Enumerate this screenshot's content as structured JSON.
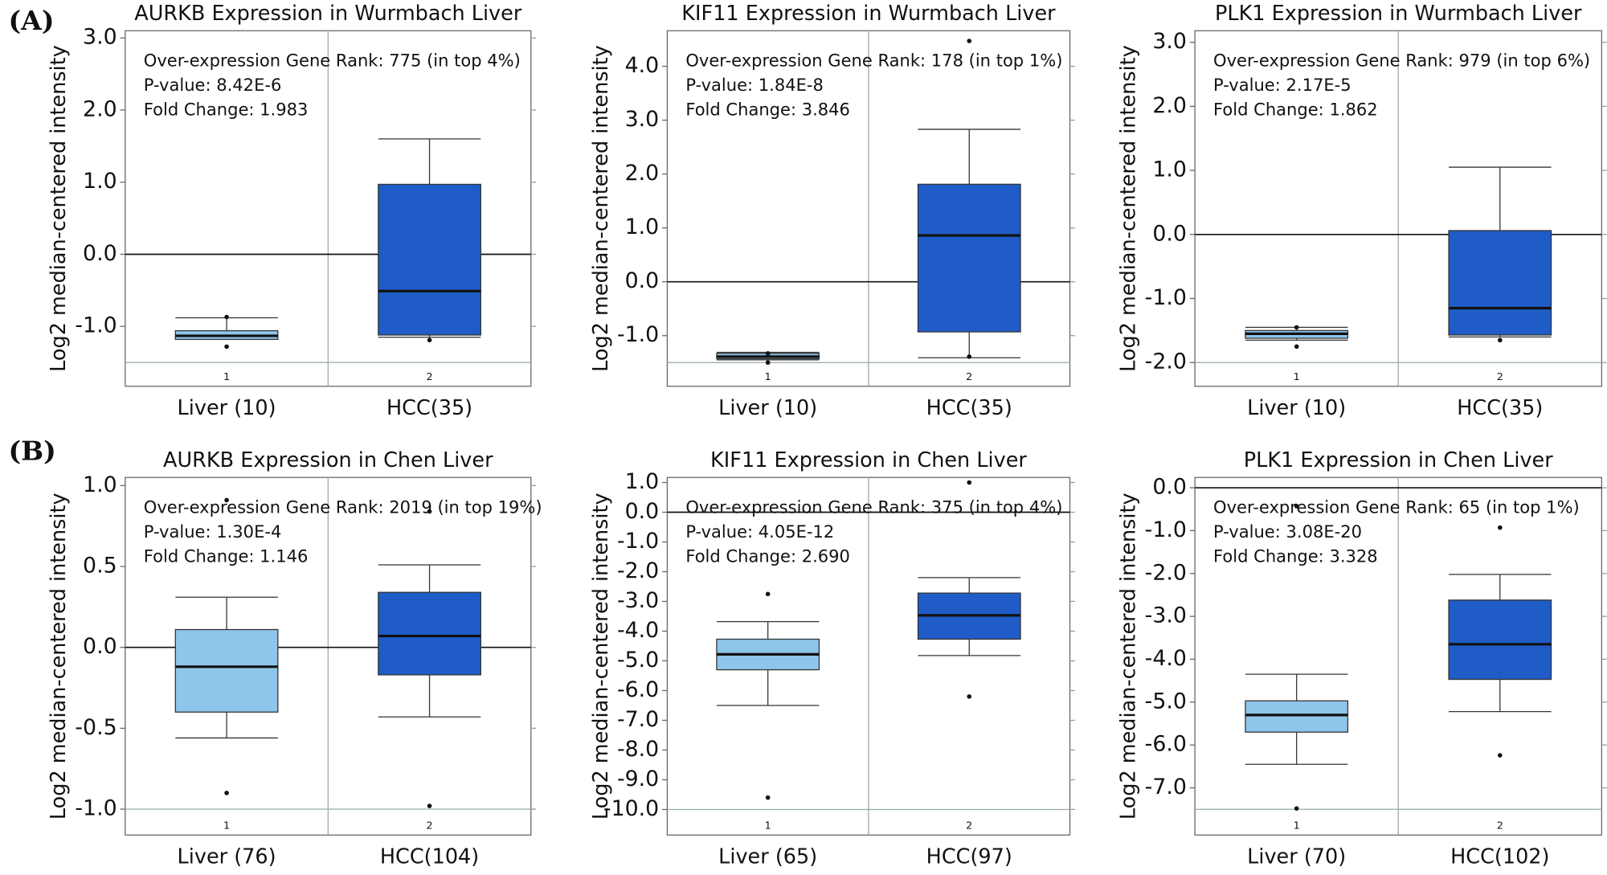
{
  "panel_labels": [
    "(A)",
    "(B)"
  ],
  "chart_data": [
    {
      "type": "box",
      "title": "AURKB Expression in Wurmbach Liver",
      "ylabel": "Log2 median-centered intensity",
      "annotations": [
        "Over-expression Gene Rank: 775 (in top 4%)",
        "P-value: 8.42E-6",
        "Fold Change: 1.983"
      ],
      "categories": [
        "Liver (10)",
        "HCC(35)"
      ],
      "index_labels": [
        "1",
        "2"
      ],
      "colors": [
        "#8ec5ea",
        "#1f5cc7"
      ],
      "boxes": [
        {
          "whislo": -1.18,
          "q1": -1.18,
          "med": -1.13,
          "q3": -1.06,
          "whishi": -0.88,
          "fliers": [
            -0.87,
            -1.28
          ]
        },
        {
          "whislo": -1.15,
          "q1": -1.12,
          "med": -0.51,
          "q3": 0.97,
          "whishi": 1.6,
          "fliers": [
            -1.19
          ]
        }
      ],
      "reference_lines": [
        0,
        -1.5
      ],
      "ylim": [
        -1.83,
        3.1
      ],
      "yticks": [
        {
          "value": -1,
          "label": "-1.0"
        },
        {
          "value": 0,
          "label": "0.0"
        },
        {
          "value": 1,
          "label": "1.0"
        },
        {
          "value": 2,
          "label": "2.0"
        },
        {
          "value": 3,
          "label": "3.0"
        }
      ]
    },
    {
      "type": "box",
      "title": "KIF11 Expression in Wurmbach Liver",
      "ylabel": "Log2 median-centered intensity",
      "annotations": [
        "Over-expression Gene Rank: 178 (in top 1%)",
        "P-value: 1.84E-8",
        "Fold Change: 3.846"
      ],
      "categories": [
        "Liver (10)",
        "HCC(35)"
      ],
      "index_labels": [
        "1",
        "2"
      ],
      "colors": [
        "#8ec5ea",
        "#1f5cc7"
      ],
      "boxes": [
        {
          "whislo": -1.45,
          "q1": -1.43,
          "med": -1.39,
          "q3": -1.33,
          "whishi": -1.31,
          "fliers": [
            -1.33,
            -1.5
          ]
        },
        {
          "whislo": -1.41,
          "q1": -0.93,
          "med": 0.86,
          "q3": 1.81,
          "whishi": 2.83,
          "fliers": [
            -1.39,
            4.47
          ]
        }
      ],
      "reference_lines": [
        0,
        -1.5
      ],
      "ylim": [
        -1.94,
        4.66
      ],
      "yticks": [
        {
          "value": -1,
          "label": "-1.0"
        },
        {
          "value": 0,
          "label": "0.0"
        },
        {
          "value": 1,
          "label": "1.0"
        },
        {
          "value": 2,
          "label": "2.0"
        },
        {
          "value": 3,
          "label": "3.0"
        },
        {
          "value": 4,
          "label": "4.0"
        }
      ]
    },
    {
      "type": "box",
      "title": "PLK1 Expression in Wurmbach Liver",
      "ylabel": "Log2 median-centered intensity",
      "annotations": [
        "Over-expression Gene Rank: 979 (in top 6%)",
        "P-value: 2.17E-5",
        "Fold Change: 1.862"
      ],
      "categories": [
        "Liver (10)",
        "HCC(35)"
      ],
      "index_labels": [
        "1",
        "2"
      ],
      "colors": [
        "#8ec5ea",
        "#1f5cc7"
      ],
      "boxes": [
        {
          "whislo": -1.65,
          "q1": -1.62,
          "med": -1.55,
          "q3": -1.5,
          "whishi": -1.45,
          "fliers": [
            -1.45,
            -1.75
          ]
        },
        {
          "whislo": -1.6,
          "q1": -1.57,
          "med": -1.15,
          "q3": 0.06,
          "whishi": 1.05,
          "fliers": [
            -1.65
          ]
        }
      ],
      "reference_lines": [
        0,
        -2
      ],
      "ylim": [
        -2.37,
        3.18
      ],
      "yticks": [
        {
          "value": -2,
          "label": "-2.0"
        },
        {
          "value": -1,
          "label": "-1.0"
        },
        {
          "value": 0,
          "label": "0.0"
        },
        {
          "value": 1,
          "label": "1.0"
        },
        {
          "value": 2,
          "label": "2.0"
        },
        {
          "value": 3,
          "label": "3.0"
        }
      ]
    },
    {
      "type": "box",
      "title": "AURKB Expression in Chen Liver",
      "ylabel": "Log2 median-centered intensity",
      "annotations": [
        "Over-expression Gene Rank: 2019 (in top 19%)",
        "P-value: 1.30E-4",
        "Fold Change: 1.146"
      ],
      "categories": [
        "Liver (76)",
        "HCC(104)"
      ],
      "index_labels": [
        "1",
        "2"
      ],
      "colors": [
        "#8ec5ea",
        "#1f5cc7"
      ],
      "boxes": [
        {
          "whislo": -0.56,
          "q1": -0.4,
          "med": -0.12,
          "q3": 0.11,
          "whishi": 0.31,
          "fliers": [
            -0.9,
            0.91
          ]
        },
        {
          "whislo": -0.43,
          "q1": -0.17,
          "med": 0.07,
          "q3": 0.34,
          "whishi": 0.51,
          "fliers": [
            -0.98,
            0.84
          ]
        }
      ],
      "reference_lines": [
        0,
        -1
      ],
      "ylim": [
        -1.16,
        1.05
      ],
      "yticks": [
        {
          "value": -1,
          "label": "-1.0"
        },
        {
          "value": -0.5,
          "label": "-0.5"
        },
        {
          "value": 0,
          "label": "0.0"
        },
        0.5,
        {
          "value": 1,
          "label": "1.0"
        }
      ]
    },
    {
      "type": "box",
      "title": "KIF11 Expression in Chen Liver",
      "ylabel": "Log2 median-centered intensity",
      "annotations": [
        "Over-expression Gene Rank: 375 (in top 4%)",
        "P-value: 4.05E-12",
        "Fold Change: 2.690"
      ],
      "categories": [
        "Liver (65)",
        "HCC(97)"
      ],
      "index_labels": [
        "1",
        "2"
      ],
      "colors": [
        "#8ec5ea",
        "#1f5cc7"
      ],
      "boxes": [
        {
          "whislo": -6.5,
          "q1": -5.3,
          "med": -4.78,
          "q3": -4.27,
          "whishi": -3.68,
          "fliers": [
            -2.75,
            -9.6
          ]
        },
        {
          "whislo": -4.82,
          "q1": -4.27,
          "med": -3.47,
          "q3": -2.72,
          "whishi": -2.2,
          "fliers": [
            1.0,
            -6.2
          ]
        }
      ],
      "reference_lines": [
        0,
        -10
      ],
      "ylim": [
        -10.86,
        1.17
      ],
      "yticks": [
        {
          "value": -10,
          "label": "-10.0"
        },
        {
          "value": -9,
          "label": "-9.0"
        },
        {
          "value": -8,
          "label": "-8.0"
        },
        {
          "value": -7,
          "label": "-7.0"
        },
        {
          "value": -6,
          "label": "-6.0"
        },
        {
          "value": -5,
          "label": "-5.0"
        },
        {
          "value": -4,
          "label": "-4.0"
        },
        {
          "value": -3,
          "label": "-3.0"
        },
        {
          "value": -2,
          "label": "-2.0"
        },
        {
          "value": -1,
          "label": "-1.0"
        },
        {
          "value": 0,
          "label": "0.0"
        },
        {
          "value": 1,
          "label": "1.0"
        }
      ]
    },
    {
      "type": "box",
      "title": "PLK1 Expression in Chen Liver",
      "ylabel": "Log2 median-centered intensity",
      "annotations": [
        "Over-expression Gene Rank: 65 (in top 1%)",
        "P-value: 3.08E-20",
        "Fold Change: 3.328"
      ],
      "categories": [
        "Liver (70)",
        "HCC(102)"
      ],
      "index_labels": [
        "1",
        "2"
      ],
      "colors": [
        "#8ec5ea",
        "#1f5cc7"
      ],
      "boxes": [
        {
          "whislo": -6.45,
          "q1": -5.7,
          "med": -5.3,
          "q3": -4.97,
          "whishi": -4.35,
          "fliers": [
            -7.48,
            -0.43
          ]
        },
        {
          "whislo": -5.22,
          "q1": -4.47,
          "med": -3.65,
          "q3": -2.62,
          "whishi": -2.02,
          "fliers": [
            -0.93,
            -6.24
          ]
        }
      ],
      "reference_lines": [
        0,
        -7.5
      ],
      "ylim": [
        -8.1,
        0.24
      ],
      "yticks": [
        {
          "value": -7,
          "label": "-7.0"
        },
        {
          "value": -6,
          "label": "-6.0"
        },
        {
          "value": -5,
          "label": "-5.0"
        },
        {
          "value": -4,
          "label": "-4.0"
        },
        {
          "value": -3,
          "label": "-3.0"
        },
        {
          "value": -2,
          "label": "-2.0"
        },
        {
          "value": -1,
          "label": "-1.0"
        },
        {
          "value": 0,
          "label": "0.0"
        }
      ]
    }
  ]
}
